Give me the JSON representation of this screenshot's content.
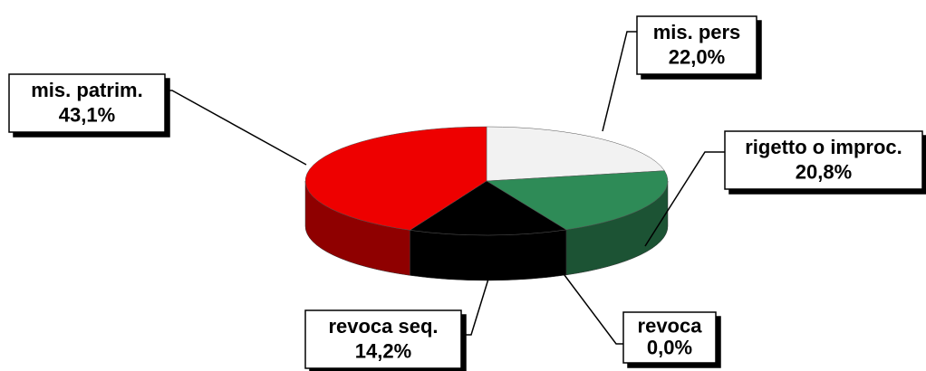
{
  "chart_data": {
    "type": "pie3d",
    "categories": [
      "mis. pers",
      "rigetto o improc.",
      "revoca",
      "revoca seq.",
      "mis. patrim."
    ],
    "values": [
      22.0,
      20.8,
      0.0,
      14.2,
      43.1
    ],
    "value_labels": [
      "22,0%",
      "20,8%",
      "0,0%",
      "14,2%",
      "43,1%"
    ],
    "colors": [
      "#f2f2f2",
      "#2e8b57",
      "#3366cc",
      "#000000",
      "#ee0000"
    ]
  }
}
